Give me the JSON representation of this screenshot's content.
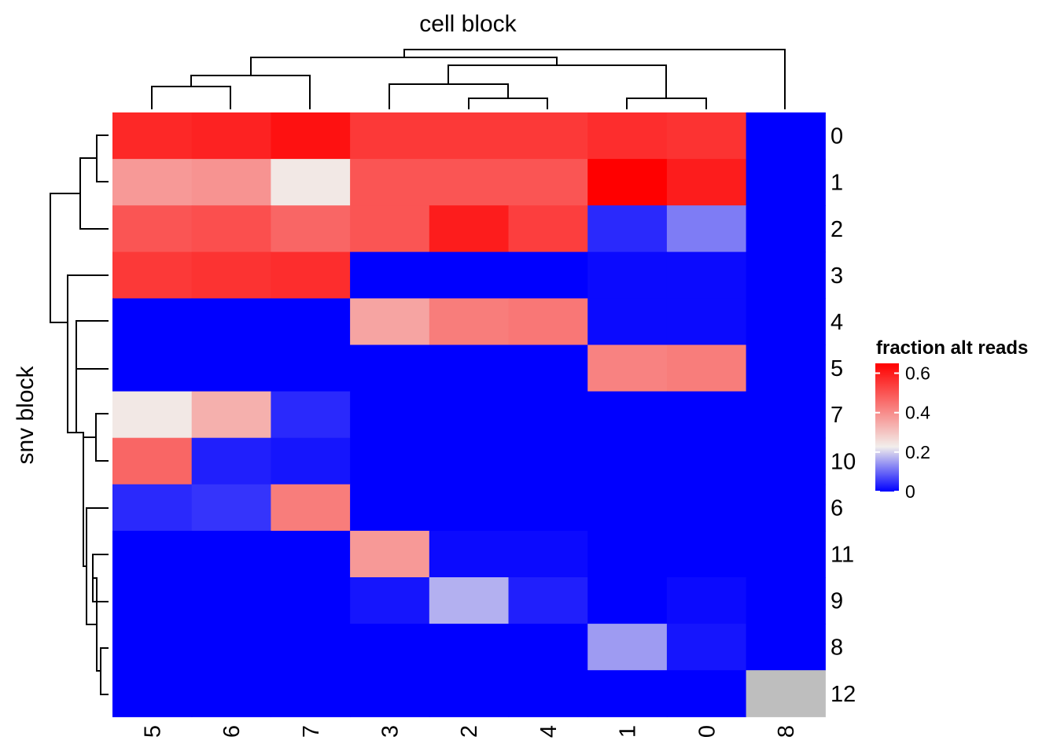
{
  "chart_data": {
    "type": "heatmap",
    "title": "cell block",
    "xlabel": "cell block",
    "ylabel": "snv block",
    "x_categories": [
      "5",
      "6",
      "7",
      "3",
      "2",
      "4",
      "1",
      "0",
      "8"
    ],
    "y_categories": [
      "0",
      "1",
      "2",
      "3",
      "4",
      "5",
      "7",
      "10",
      "6",
      "11",
      "9",
      "8",
      "12"
    ],
    "values": [
      [
        0.58,
        0.59,
        0.62,
        0.55,
        0.55,
        0.55,
        0.57,
        0.56,
        0.0
      ],
      [
        0.38,
        0.39,
        0.24,
        0.5,
        0.5,
        0.5,
        0.66,
        0.6,
        0.0
      ],
      [
        0.5,
        0.51,
        0.47,
        0.5,
        0.6,
        0.54,
        0.04,
        0.12,
        0.0
      ],
      [
        0.55,
        0.56,
        0.57,
        0.0,
        0.0,
        0.0,
        0.01,
        0.01,
        0.0
      ],
      [
        0.0,
        0.0,
        0.0,
        0.36,
        0.43,
        0.44,
        0.01,
        0.01,
        0.0
      ],
      [
        0.0,
        0.0,
        0.0,
        0.0,
        0.0,
        0.0,
        0.42,
        0.43,
        0.0
      ],
      [
        0.24,
        0.34,
        0.04,
        0.0,
        0.0,
        0.0,
        0.0,
        0.0,
        0.0
      ],
      [
        0.47,
        0.03,
        0.02,
        0.0,
        0.0,
        0.0,
        0.0,
        0.0,
        0.0
      ],
      [
        0.04,
        0.05,
        0.43,
        0.0,
        0.0,
        0.0,
        0.0,
        0.0,
        0.0
      ],
      [
        0.0,
        0.0,
        0.0,
        0.38,
        0.01,
        0.01,
        0.0,
        0.0,
        0.0
      ],
      [
        0.0,
        0.0,
        0.0,
        0.02,
        0.17,
        0.03,
        0.0,
        0.01,
        0.0
      ],
      [
        0.0,
        0.0,
        0.0,
        0.0,
        0.0,
        0.0,
        0.15,
        0.02,
        0.0
      ],
      [
        0.0,
        0.0,
        0.0,
        0.0,
        0.0,
        0.0,
        0.0,
        0.0,
        null
      ]
    ],
    "na_color": "#bebebe",
    "color_scale": {
      "stops": [
        {
          "value": 0.0,
          "color": "#0000ff"
        },
        {
          "value": 0.23,
          "color": "#f2eeeb"
        },
        {
          "value": 0.65,
          "color": "#ff0000"
        }
      ]
    },
    "legend": {
      "title": "fraction alt reads",
      "ticks": [
        "0.6",
        "0.4",
        "0.2",
        "0"
      ],
      "tick_values": [
        0.6,
        0.4,
        0.2,
        0.0
      ],
      "range": [
        0.0,
        0.65
      ],
      "position": "right"
    },
    "column_dendrogram": true,
    "row_dendrogram": true
  }
}
